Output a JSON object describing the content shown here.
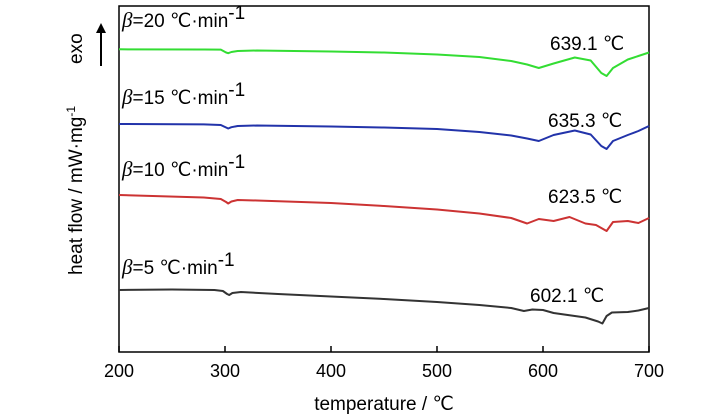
{
  "chart_data": {
    "type": "line",
    "xlabel": "temperature / ℃",
    "ylabel": "heat flow / mW·mg",
    "ylabel_sup": "-1",
    "exo_label": "exo",
    "xlim": [
      200,
      700
    ],
    "xticks": [
      200,
      300,
      400,
      500,
      600,
      700
    ],
    "yticks_shown": false,
    "series": [
      {
        "name_symbol": "β",
        "name_rest": "=20 ℃·min",
        "name_sup": "-1",
        "color": "#33dd33",
        "peak_label": "639.1 ℃",
        "x": [
          200,
          280,
          296,
          301,
          303,
          306,
          312,
          330,
          400,
          450,
          500,
          540,
          570,
          585,
          596,
          610,
          630,
          645,
          655,
          660,
          666,
          680,
          690,
          700
        ],
        "y": [
          0.7,
          0.5,
          0.4,
          -2.5,
          -3.2,
          -2.0,
          -1.0,
          -0.5,
          -1.5,
          -2.5,
          -4.5,
          -7.0,
          -11.0,
          -14.5,
          -18.0,
          -13.5,
          -7.5,
          -10.5,
          -23.0,
          -26.0,
          -18.0,
          -9.5,
          -6.0,
          -2.5
        ]
      },
      {
        "name_symbol": "β",
        "name_rest": "=15 ℃·min",
        "name_sup": "-1",
        "color": "#2233aa",
        "peak_label": "635.3 ℃",
        "x": [
          200,
          280,
          296,
          301,
          303,
          306,
          312,
          330,
          400,
          450,
          500,
          540,
          570,
          585,
          596,
          610,
          630,
          645,
          655,
          660,
          666,
          680,
          690,
          700
        ],
        "y": [
          0,
          -0.4,
          -1.0,
          -3.5,
          -4.5,
          -3.2,
          -2.0,
          -1.5,
          -2.5,
          -3.5,
          -5.0,
          -8.0,
          -11.5,
          -14.5,
          -17.0,
          -11.0,
          -6.5,
          -10.5,
          -22.0,
          -25.0,
          -17.0,
          -11.0,
          -7.0,
          -2.0
        ]
      },
      {
        "name_symbol": "β",
        "name_rest": "=10 ℃·min",
        "name_sup": "-1",
        "color": "#cc3333",
        "peak_label": "623.5 ℃",
        "x": [
          200,
          280,
          296,
          301,
          303,
          306,
          312,
          330,
          400,
          450,
          500,
          540,
          570,
          585,
          596,
          610,
          625,
          640,
          650,
          655,
          660,
          666,
          680,
          690,
          700
        ],
        "y": [
          0,
          -2.5,
          -4.0,
          -7.0,
          -8.5,
          -6.5,
          -5.0,
          -5.5,
          -8.0,
          -11.0,
          -14.5,
          -18.5,
          -23.0,
          -28.5,
          -24.0,
          -26.0,
          -22.0,
          -28.5,
          -30.0,
          -33.0,
          -36.0,
          -27.0,
          -26.0,
          -28.0,
          -23.0
        ]
      },
      {
        "name_symbol": "β",
        "name_rest": "=5 ℃·min",
        "name_sup": "-1",
        "color": "#333333",
        "peak_label": "602.1 ℃",
        "x": [
          200,
          250,
          290,
          298,
          302,
          304,
          307,
          315,
          350,
          400,
          450,
          500,
          540,
          570,
          582,
          590,
          600,
          610,
          640,
          652,
          656,
          660,
          665,
          680,
          690,
          700
        ],
        "y": [
          0,
          0.5,
          0,
          -1.0,
          -4.0,
          -5.0,
          -3.0,
          -2.0,
          -4.0,
          -6.5,
          -9.0,
          -12.0,
          -15.0,
          -18.0,
          -21.0,
          -19.5,
          -20.0,
          -23.0,
          -27.5,
          -31.5,
          -33.5,
          -26.0,
          -22.5,
          -22.0,
          -20.5,
          -18.0
        ]
      }
    ]
  }
}
